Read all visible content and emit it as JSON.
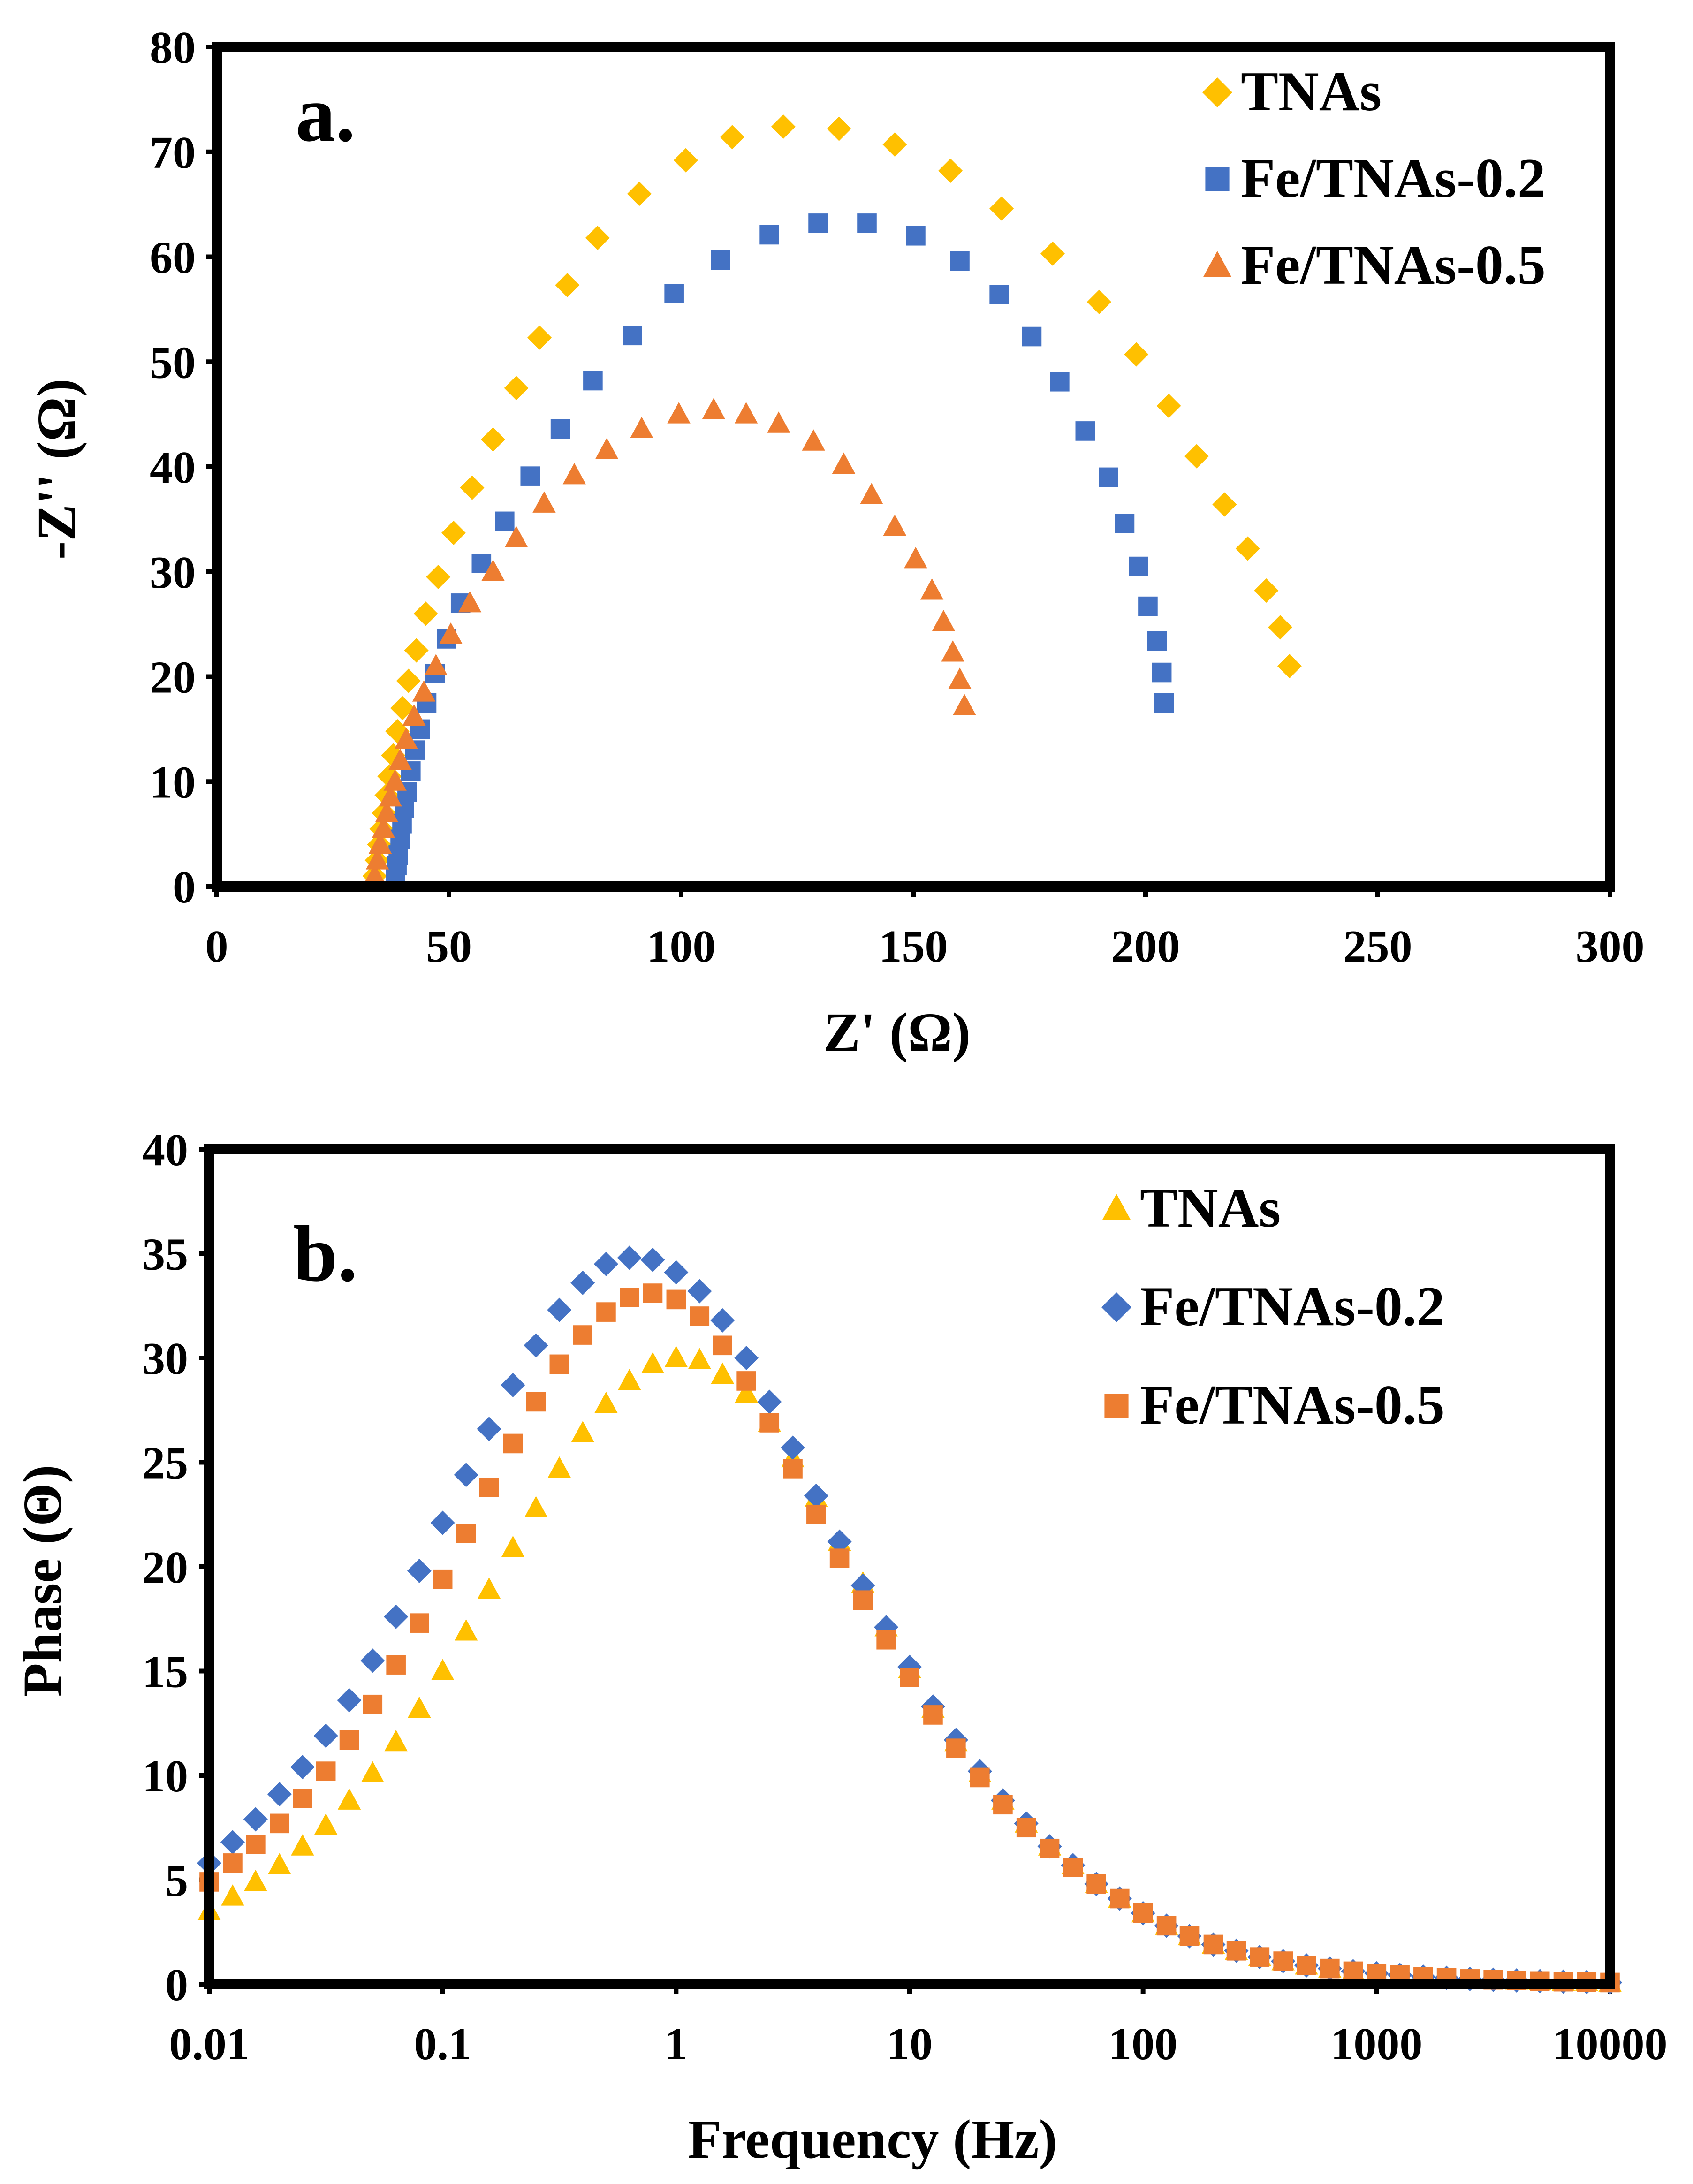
{
  "chart_data": [
    {
      "type": "scatter",
      "panel_label": "a.",
      "xlabel": "Z' (Ω)",
      "ylabel": "-Z'' (Ω)",
      "xlim": [
        0,
        300
      ],
      "ylim": [
        0,
        80
      ],
      "xticks": [
        0,
        50,
        100,
        150,
        200,
        250,
        300
      ],
      "yticks": [
        0,
        10,
        20,
        30,
        40,
        50,
        60,
        70,
        80
      ],
      "legend_position": "top-right",
      "series": [
        {
          "name": "TNAs",
          "marker": "diamond",
          "color": "#FFC000",
          "x": [
            34,
            34.5,
            35,
            35.5,
            36,
            36.6,
            37.2,
            38,
            38.9,
            40,
            41.3,
            43,
            45,
            47.7,
            51,
            55,
            59.5,
            64.5,
            69.5,
            75.5,
            82,
            91,
            101,
            111,
            122,
            134,
            146,
            158,
            169,
            180,
            190,
            198,
            205,
            211,
            217,
            222,
            226,
            229,
            231
          ],
          "y": [
            1,
            2.5,
            4,
            5.5,
            7,
            8.7,
            10.5,
            12.5,
            14.8,
            17,
            19.6,
            22.5,
            26,
            29.5,
            33.7,
            38,
            42.6,
            47.5,
            52.3,
            57.3,
            61.8,
            66,
            69.2,
            71.4,
            72.4,
            72.2,
            70.7,
            68.2,
            64.6,
            60.3,
            55.7,
            50.7,
            45.8,
            41,
            36.4,
            32.2,
            28.2,
            24.7,
            21
          ]
        },
        {
          "name": "Fe/TNAs-0.2",
          "marker": "square",
          "color": "#4472C4",
          "x": [
            38.5,
            38.8,
            39.1,
            39.5,
            39.9,
            40.4,
            41,
            41.8,
            42.7,
            43.8,
            45.2,
            47,
            49.5,
            52.5,
            57,
            62,
            67.5,
            74,
            81,
            89.5,
            98.5,
            108.5,
            119,
            129.5,
            140,
            150.5,
            160,
            168.5,
            175.5,
            181.5,
            187,
            192,
            195.5,
            198.5,
            200.5,
            202.5,
            203.5,
            204
          ],
          "y": [
            1,
            2,
            3,
            4.5,
            6,
            7.5,
            9,
            11,
            13,
            15,
            17.5,
            20.3,
            23.6,
            27,
            30.8,
            34.8,
            39.1,
            43.6,
            48.2,
            52.5,
            56.5,
            59.7,
            62.1,
            63.2,
            63.2,
            62,
            59.6,
            56.4,
            52.4,
            48.1,
            43.4,
            39,
            34.6,
            30.5,
            26.7,
            23.4,
            20.4,
            17.5
          ]
        },
        {
          "name": "Fe/TNAs-0.5",
          "marker": "triangle",
          "color": "#ED7D31",
          "x": [
            34,
            34.6,
            35.2,
            35.9,
            36.6,
            37.4,
            38.4,
            39.5,
            40.8,
            42.5,
            44.6,
            47.2,
            50.4,
            54.5,
            59.5,
            64.5,
            70.5,
            77,
            84,
            91.5,
            99.5,
            107,
            114,
            121,
            128.5,
            135,
            141,
            146,
            150.5,
            154,
            156.5,
            158.5,
            160,
            161
          ],
          "y": [
            1,
            2.5,
            4,
            5.5,
            7,
            8.5,
            10,
            12,
            14,
            16.2,
            18.5,
            21,
            24,
            27,
            30,
            33.2,
            36.5,
            39.2,
            41.6,
            43.6,
            45,
            45.4,
            45,
            44.1,
            42.4,
            40.2,
            37.3,
            34.3,
            31.2,
            28.2,
            25.2,
            22.3,
            19.7,
            17.2
          ]
        }
      ]
    },
    {
      "type": "scatter",
      "panel_label": "b.",
      "xlabel": "Frequency (Hz)",
      "ylabel": "Phase (Θ)",
      "xscale": "log",
      "xlim": [
        0.01,
        10000
      ],
      "ylim": [
        0,
        40
      ],
      "xticks": [
        "0.01",
        "0.1",
        "1",
        "10",
        "100",
        "1000",
        "10000"
      ],
      "yticks": [
        0,
        5,
        10,
        15,
        20,
        25,
        30,
        35,
        40
      ],
      "legend_position": "top-right",
      "series": [
        {
          "name": "TNAs",
          "marker": "triangle",
          "color": "#FFC000",
          "x": [
            0.01,
            0.0126,
            0.0158,
            0.02,
            0.0251,
            0.0316,
            0.0398,
            0.0501,
            0.0631,
            0.0794,
            0.1,
            0.126,
            0.158,
            0.2,
            0.251,
            0.316,
            0.398,
            0.501,
            0.631,
            0.794,
            1,
            1.26,
            1.58,
            2,
            2.51,
            3.16,
            3.98,
            5.01,
            6.31,
            7.94,
            10,
            12.6,
            15.8,
            20,
            25.1,
            31.6,
            39.8,
            50.1,
            63.1,
            79.4,
            100,
            126,
            158,
            200,
            251,
            316,
            398,
            501,
            631,
            794,
            1000,
            1259,
            1585,
            1995,
            2512,
            3162,
            3981,
            5012,
            6310,
            7943,
            10000
          ],
          "y": [
            3.5,
            4.2,
            4.9,
            5.7,
            6.6,
            7.6,
            8.8,
            10.1,
            11.6,
            13.2,
            15,
            16.9,
            18.9,
            20.9,
            22.8,
            24.7,
            26.4,
            27.8,
            28.9,
            29.7,
            30,
            29.9,
            29.2,
            28.3,
            26.9,
            25.2,
            23.3,
            21.2,
            19.2,
            17.1,
            15.1,
            13.2,
            11.6,
            10.1,
            8.8,
            7.7,
            6.6,
            5.7,
            4.8,
            4.1,
            3.4,
            2.8,
            2.3,
            1.9,
            1.6,
            1.3,
            1.1,
            0.9,
            0.75,
            0.62,
            0.52,
            0.44,
            0.36,
            0.3,
            0.25,
            0.21,
            0.18,
            0.15,
            0.12,
            0.1,
            0.08
          ]
        },
        {
          "name": "Fe/TNAs-0.2",
          "marker": "diamond",
          "color": "#4472C4",
          "x": [
            0.01,
            0.0126,
            0.0158,
            0.02,
            0.0251,
            0.0316,
            0.0398,
            0.0501,
            0.0631,
            0.0794,
            0.1,
            0.126,
            0.158,
            0.2,
            0.251,
            0.316,
            0.398,
            0.501,
            0.631,
            0.794,
            1,
            1.26,
            1.58,
            2,
            2.51,
            3.16,
            3.98,
            5.01,
            6.31,
            7.94,
            10,
            12.6,
            15.8,
            20,
            25.1,
            31.6,
            39.8,
            50.1,
            63.1,
            79.4,
            100,
            126,
            158,
            200,
            251,
            316,
            398,
            501,
            631,
            794,
            1000,
            1259,
            1585,
            1995,
            2512,
            3162,
            3981,
            5012,
            6310,
            7943,
            10000
          ],
          "y": [
            5.8,
            6.8,
            7.9,
            9.1,
            10.4,
            11.9,
            13.6,
            15.5,
            17.6,
            19.8,
            22.1,
            24.4,
            26.6,
            28.7,
            30.6,
            32.3,
            33.6,
            34.5,
            34.8,
            34.7,
            34.1,
            33.2,
            31.8,
            30,
            27.9,
            25.7,
            23.4,
            21.2,
            19.1,
            17.1,
            15.2,
            13.3,
            11.7,
            10.2,
            8.8,
            7.7,
            6.6,
            5.7,
            4.8,
            4.1,
            3.4,
            2.8,
            2.3,
            1.9,
            1.6,
            1.3,
            1.1,
            0.9,
            0.75,
            0.62,
            0.52,
            0.44,
            0.36,
            0.3,
            0.25,
            0.21,
            0.18,
            0.15,
            0.12,
            0.1,
            0.08
          ]
        },
        {
          "name": "Fe/TNAs-0.5",
          "marker": "square",
          "color": "#ED7D31",
          "x": [
            0.01,
            0.0126,
            0.0158,
            0.02,
            0.0251,
            0.0316,
            0.0398,
            0.0501,
            0.0631,
            0.0794,
            0.1,
            0.126,
            0.158,
            0.2,
            0.251,
            0.316,
            0.398,
            0.501,
            0.631,
            0.794,
            1,
            1.26,
            1.58,
            2,
            2.51,
            3.16,
            3.98,
            5.01,
            6.31,
            7.94,
            10,
            12.6,
            15.8,
            20,
            25.1,
            31.6,
            39.8,
            50.1,
            63.1,
            79.4,
            100,
            126,
            158,
            200,
            251,
            316,
            398,
            501,
            631,
            794,
            1000,
            1259,
            1585,
            1995,
            2512,
            3162,
            3981,
            5012,
            6310,
            7943,
            10000
          ],
          "y": [
            4.9,
            5.8,
            6.7,
            7.7,
            8.9,
            10.2,
            11.7,
            13.4,
            15.3,
            17.3,
            19.4,
            21.6,
            23.8,
            25.9,
            27.9,
            29.7,
            31.1,
            32.2,
            32.9,
            33.1,
            32.8,
            32,
            30.6,
            28.9,
            26.9,
            24.7,
            22.5,
            20.4,
            18.4,
            16.5,
            14.7,
            12.9,
            11.3,
            9.9,
            8.6,
            7.5,
            6.5,
            5.6,
            4.8,
            4.1,
            3.4,
            2.8,
            2.3,
            1.9,
            1.6,
            1.3,
            1.1,
            0.9,
            0.75,
            0.62,
            0.52,
            0.44,
            0.36,
            0.3,
            0.25,
            0.21,
            0.18,
            0.15,
            0.12,
            0.1,
            0.08
          ]
        }
      ]
    }
  ]
}
